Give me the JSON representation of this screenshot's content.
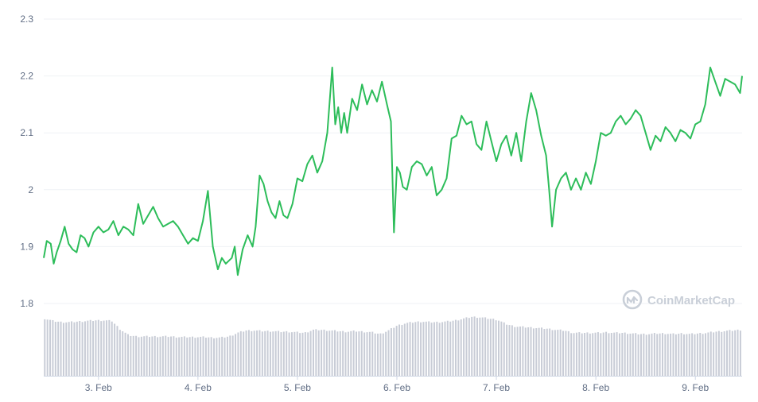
{
  "chart_data": {
    "type": "line",
    "watermark": "CoinMarketCap",
    "x_ticks": [
      "3. Feb",
      "4. Feb",
      "5. Feb",
      "6. Feb",
      "7. Feb",
      "8. Feb",
      "9. Feb"
    ],
    "y_ticks": [
      "1.8",
      "1.9",
      "2",
      "2.1",
      "2.2",
      "2.3"
    ],
    "ylim": [
      1.8,
      2.3
    ],
    "xlim_days": [
      2.45,
      9.47
    ],
    "grid": true,
    "colors": {
      "line": "#16c784",
      "line_stroke": "#2dbd5a",
      "volume": "#c8ccd6",
      "grid": "#eff2f5",
      "axis": "#cfd6e4",
      "tick_text": "#616e85"
    },
    "series": [
      {
        "values_x": [
          2.45,
          2.48,
          2.52,
          2.55,
          2.58,
          2.62,
          2.66,
          2.7,
          2.74,
          2.78,
          2.82,
          2.86,
          2.9,
          2.95,
          3.0,
          3.05,
          3.1,
          3.15,
          3.2,
          3.25,
          3.3,
          3.35,
          3.4,
          3.45,
          3.5,
          3.55,
          3.6,
          3.65,
          3.7,
          3.75,
          3.8,
          3.85,
          3.9,
          3.95,
          4.0,
          4.05,
          4.1,
          4.15,
          4.2,
          4.24,
          4.28,
          4.31,
          4.34,
          4.37,
          4.4,
          4.45,
          4.5,
          4.55,
          4.58,
          4.62,
          4.66,
          4.7,
          4.74,
          4.78,
          4.82,
          4.86,
          4.9,
          4.95,
          5.0,
          5.05,
          5.1,
          5.15,
          5.2,
          5.25,
          5.3,
          5.35,
          5.38,
          5.41,
          5.44,
          5.47,
          5.5,
          5.55,
          5.6,
          5.65,
          5.7,
          5.75,
          5.8,
          5.85,
          5.9,
          5.94,
          5.97,
          6.0,
          6.03,
          6.06,
          6.1,
          6.15,
          6.2,
          6.25,
          6.3,
          6.35,
          6.4,
          6.45,
          6.5,
          6.55,
          6.6,
          6.65,
          6.7,
          6.75,
          6.8,
          6.85,
          6.9,
          6.95,
          7.0,
          7.05,
          7.1,
          7.15,
          7.2,
          7.25,
          7.3,
          7.35,
          7.4,
          7.45,
          7.5,
          7.53,
          7.56,
          7.6,
          7.65,
          7.7,
          7.75,
          7.8,
          7.85,
          7.9,
          7.95,
          8.0,
          8.05,
          8.1,
          8.15,
          8.2,
          8.25,
          8.3,
          8.35,
          8.4,
          8.45,
          8.5,
          8.55,
          8.6,
          8.65,
          8.7,
          8.75,
          8.8,
          8.85,
          8.9,
          8.95,
          9.0,
          9.05,
          9.1,
          9.15,
          9.2,
          9.25,
          9.3,
          9.35,
          9.4,
          9.45,
          9.47
        ],
        "values_y": [
          1.88,
          1.91,
          1.905,
          1.87,
          1.89,
          1.91,
          1.935,
          1.905,
          1.895,
          1.89,
          1.92,
          1.915,
          1.9,
          1.925,
          1.935,
          1.925,
          1.93,
          1.945,
          1.92,
          1.935,
          1.93,
          1.92,
          1.975,
          1.94,
          1.955,
          1.97,
          1.95,
          1.935,
          1.94,
          1.945,
          1.935,
          1.92,
          1.905,
          1.915,
          1.91,
          1.945,
          1.998,
          1.9,
          1.86,
          1.88,
          1.87,
          1.875,
          1.88,
          1.9,
          1.85,
          1.895,
          1.92,
          1.9,
          1.935,
          2.025,
          2.01,
          1.98,
          1.96,
          1.95,
          1.98,
          1.955,
          1.95,
          1.975,
          2.02,
          2.015,
          2.045,
          2.06,
          2.03,
          2.05,
          2.1,
          2.215,
          2.115,
          2.145,
          2.1,
          2.135,
          2.1,
          2.16,
          2.14,
          2.185,
          2.15,
          2.175,
          2.155,
          2.19,
          2.15,
          2.12,
          1.925,
          2.04,
          2.03,
          2.005,
          2.0,
          2.04,
          2.05,
          2.045,
          2.025,
          2.04,
          1.99,
          2.0,
          2.02,
          2.09,
          2.095,
          2.13,
          2.115,
          2.12,
          2.08,
          2.07,
          2.12,
          2.085,
          2.05,
          2.08,
          2.095,
          2.06,
          2.1,
          2.05,
          2.12,
          2.17,
          2.14,
          2.095,
          2.06,
          2.0,
          1.935,
          2.0,
          2.02,
          2.03,
          2.0,
          2.02,
          2.0,
          2.03,
          2.01,
          2.05,
          2.1,
          2.095,
          2.1,
          2.12,
          2.13,
          2.115,
          2.125,
          2.14,
          2.13,
          2.1,
          2.07,
          2.095,
          2.085,
          2.11,
          2.1,
          2.085,
          2.105,
          2.1,
          2.09,
          2.115,
          2.12,
          2.15,
          2.215,
          2.19,
          2.165,
          2.195,
          2.19,
          2.185,
          2.17,
          2.2
        ]
      }
    ],
    "volume_relative": [
      0.96,
      0.92,
      0.9,
      0.9,
      0.91,
      0.92,
      0.93,
      0.93,
      0.92,
      0.78,
      0.68,
      0.66,
      0.66,
      0.66,
      0.66,
      0.66,
      0.65,
      0.65,
      0.65,
      0.65,
      0.64,
      0.64,
      0.66,
      0.72,
      0.76,
      0.76,
      0.75,
      0.75,
      0.74,
      0.74,
      0.73,
      0.72,
      0.77,
      0.77,
      0.76,
      0.75,
      0.74,
      0.75,
      0.74,
      0.73,
      0.7,
      0.76,
      0.84,
      0.88,
      0.9,
      0.91,
      0.9,
      0.9,
      0.91,
      0.93,
      0.96,
      0.99,
      0.98,
      0.96,
      0.94,
      0.87,
      0.83,
      0.82,
      0.81,
      0.8,
      0.79,
      0.77,
      0.76,
      0.72,
      0.72,
      0.72,
      0.72,
      0.73,
      0.72,
      0.72,
      0.71,
      0.7,
      0.7,
      0.71,
      0.71,
      0.7,
      0.71,
      0.7,
      0.71,
      0.72,
      0.74,
      0.75,
      0.76,
      0.77
    ]
  }
}
